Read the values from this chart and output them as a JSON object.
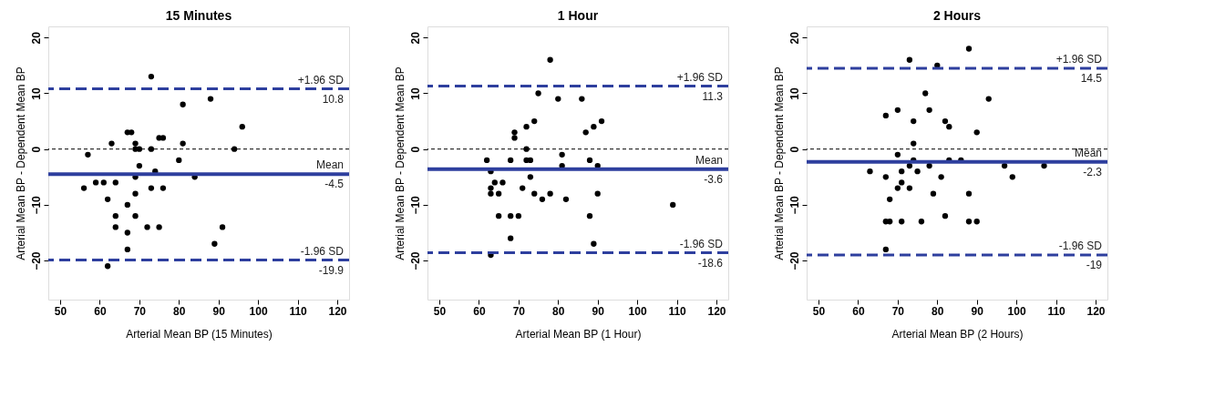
{
  "chart_data": [
    {
      "type": "scatter",
      "title": "15 Minutes",
      "xlabel": "Arterial Mean BP (15 Minutes)",
      "ylabel": "Arterial Mean BP - Dependent Mean BP",
      "xlim": [
        47,
        123
      ],
      "ylim": [
        -27,
        22
      ],
      "xticks": [
        50,
        60,
        70,
        80,
        90,
        100,
        110,
        120
      ],
      "yticks": [
        -20,
        -10,
        0,
        10,
        20
      ],
      "grid": false,
      "marker": "circle",
      "series": [
        {
          "color": "#000000",
          "x": [
            73,
            57,
            56,
            59,
            61,
            62,
            63,
            64,
            64,
            64,
            62,
            67,
            68,
            67,
            67,
            67,
            69,
            69,
            70,
            69,
            69,
            69,
            70,
            72,
            73,
            73,
            74,
            75,
            76,
            75,
            76,
            80,
            81,
            81,
            84,
            88,
            89,
            91,
            94,
            96
          ],
          "values": [
            13,
            -1,
            -7,
            -6,
            -6,
            -9,
            1,
            -6,
            -12,
            -14,
            -21,
            3,
            3,
            -10,
            -15,
            -18,
            1,
            0,
            0,
            -5,
            -8,
            -12,
            -3,
            -14,
            0,
            -7,
            -4,
            2,
            2,
            -14,
            -7,
            -2,
            8,
            1,
            -5,
            9,
            -17,
            -14,
            0,
            4
          ]
        }
      ],
      "ref_lines": [
        {
          "axis": "y",
          "value": 0,
          "color": "#000000",
          "line_style": "dotted"
        },
        {
          "axis": "y",
          "value": 10.8,
          "label": "+1.96 SD",
          "color": "#2e3f9e",
          "line_style": "dashed"
        },
        {
          "axis": "y",
          "value": -4.5,
          "label": "Mean",
          "color": "#2e3f9e",
          "line_style": "solid"
        },
        {
          "axis": "y",
          "value": -19.9,
          "label": "-1.96 SD",
          "color": "#2e3f9e",
          "line_style": "dashed"
        }
      ],
      "annotations": [
        {
          "text": "10.8",
          "y": 10.8
        },
        {
          "text": "-4.5",
          "y": -4.5
        },
        {
          "text": "-19.9",
          "y": -19.9
        }
      ]
    },
    {
      "type": "scatter",
      "title": "1 Hour",
      "xlabel": "Arterial Mean BP (1 Hour)",
      "ylabel": "Arterial Mean BP - Dependent Mean BP",
      "xlim": [
        47,
        123
      ],
      "ylim": [
        -27,
        22
      ],
      "xticks": [
        50,
        60,
        70,
        80,
        90,
        100,
        110,
        120
      ],
      "yticks": [
        -20,
        -10,
        0,
        10,
        20
      ],
      "grid": false,
      "marker": "circle",
      "series": [
        {
          "color": "#000000",
          "x": [
            78,
            75,
            80,
            86,
            74,
            72,
            69,
            69,
            87,
            89,
            91,
            72,
            62,
            68,
            72,
            73,
            81,
            81,
            88,
            90,
            63,
            63,
            64,
            63,
            65,
            66,
            73,
            71,
            74,
            76,
            78,
            82,
            90,
            65,
            68,
            70,
            68,
            88,
            89,
            63,
            109
          ],
          "values": [
            16,
            10,
            9,
            9,
            5,
            4,
            3,
            2,
            3,
            4,
            5,
            0,
            -2,
            -2,
            -2,
            -2,
            -1,
            -3,
            -2,
            -3,
            -4,
            -7,
            -6,
            -8,
            -8,
            -6,
            -5,
            -7,
            -8,
            -9,
            -8,
            -9,
            -8,
            -12,
            -12,
            -12,
            -16,
            -12,
            -17,
            -19,
            -10
          ]
        }
      ],
      "ref_lines": [
        {
          "axis": "y",
          "value": 0,
          "color": "#000000",
          "line_style": "dotted"
        },
        {
          "axis": "y",
          "value": 11.3,
          "label": "+1.96 SD",
          "color": "#2e3f9e",
          "line_style": "dashed"
        },
        {
          "axis": "y",
          "value": -3.6,
          "label": "Mean",
          "color": "#2e3f9e",
          "line_style": "solid"
        },
        {
          "axis": "y",
          "value": -18.6,
          "label": "-1.96 SD",
          "color": "#2e3f9e",
          "line_style": "dashed"
        }
      ],
      "annotations": [
        {
          "text": "11.3",
          "y": 11.3
        },
        {
          "text": "-3.6",
          "y": -3.6
        },
        {
          "text": "-18.6",
          "y": -18.6
        }
      ]
    },
    {
      "type": "scatter",
      "title": "2 Hours",
      "xlabel": "Arterial Mean BP (2 Hours)",
      "ylabel": "Arterial Mean BP - Dependent Mean BP",
      "xlim": [
        47,
        123
      ],
      "ylim": [
        -27,
        22
      ],
      "xticks": [
        50,
        60,
        70,
        80,
        90,
        100,
        110,
        120
      ],
      "yticks": [
        -20,
        -10,
        0,
        10,
        20
      ],
      "grid": false,
      "marker": "circle",
      "series": [
        {
          "color": "#000000",
          "x": [
            88,
            73,
            80,
            77,
            93,
            70,
            78,
            67,
            74,
            82,
            83,
            90,
            74,
            70,
            74,
            83,
            86,
            73,
            78,
            97,
            107,
            63,
            71,
            75,
            67,
            81,
            99,
            71,
            70,
            73,
            79,
            88,
            68,
            67,
            68,
            71,
            76,
            82,
            88,
            90,
            67
          ],
          "values": [
            18,
            16,
            15,
            10,
            9,
            7,
            7,
            6,
            5,
            5,
            4,
            3,
            1,
            -1,
            -2,
            -2,
            -2,
            -3,
            -3,
            -3,
            -3,
            -4,
            -4,
            -4,
            -5,
            -5,
            -5,
            -6,
            -7,
            -7,
            -8,
            -8,
            -9,
            -13,
            -13,
            -13,
            -13,
            -12,
            -13,
            -13,
            -18
          ]
        }
      ],
      "ref_lines": [
        {
          "axis": "y",
          "value": 0,
          "color": "#000000",
          "line_style": "dotted"
        },
        {
          "axis": "y",
          "value": 14.5,
          "label": "+1.96 SD",
          "color": "#2e3f9e",
          "line_style": "dashed"
        },
        {
          "axis": "y",
          "value": -2.3,
          "label": "Mean",
          "color": "#2e3f9e",
          "line_style": "solid"
        },
        {
          "axis": "y",
          "value": -19,
          "label": "-1.96 SD",
          "color": "#2e3f9e",
          "line_style": "dashed"
        }
      ],
      "annotations": [
        {
          "text": "14.5",
          "y": 14.5
        },
        {
          "text": "-2.3",
          "y": -2.3
        },
        {
          "text": "-19",
          "y": -19
        }
      ]
    }
  ]
}
